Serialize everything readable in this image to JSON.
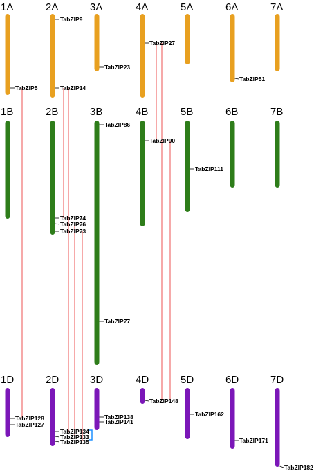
{
  "colors": {
    "A": "#E8A020",
    "B": "#2E7D1A",
    "D": "#7B17B8",
    "link": "#F07070",
    "bracket": "#1E90FF",
    "tick": "#000000"
  },
  "chromosomes": [
    {
      "id": "1A",
      "label": "1A",
      "genome": "A"
    },
    {
      "id": "2A",
      "label": "2A",
      "genome": "A"
    },
    {
      "id": "3A",
      "label": "3A",
      "genome": "A"
    },
    {
      "id": "4A",
      "label": "4A",
      "genome": "A"
    },
    {
      "id": "5A",
      "label": "5A",
      "genome": "A"
    },
    {
      "id": "6A",
      "label": "6A",
      "genome": "A"
    },
    {
      "id": "7A",
      "label": "7A",
      "genome": "A"
    },
    {
      "id": "1B",
      "label": "1B",
      "genome": "B"
    },
    {
      "id": "2B",
      "label": "2B",
      "genome": "B"
    },
    {
      "id": "3B",
      "label": "3B",
      "genome": "B"
    },
    {
      "id": "4B",
      "label": "4B",
      "genome": "B"
    },
    {
      "id": "5B",
      "label": "5B",
      "genome": "B"
    },
    {
      "id": "6B",
      "label": "6B",
      "genome": "B"
    },
    {
      "id": "7B",
      "label": "7B",
      "genome": "B"
    },
    {
      "id": "1D",
      "label": "1D",
      "genome": "D"
    },
    {
      "id": "2D",
      "label": "2D",
      "genome": "D"
    },
    {
      "id": "3D",
      "label": "3D",
      "genome": "D"
    },
    {
      "id": "4D",
      "label": "4D",
      "genome": "D"
    },
    {
      "id": "5D",
      "label": "5D",
      "genome": "D"
    },
    {
      "id": "6D",
      "label": "6D",
      "genome": "D"
    },
    {
      "id": "7D",
      "label": "7D",
      "genome": "D"
    }
  ],
  "genes": [
    {
      "name": "TabZIP9",
      "chr": "2A"
    },
    {
      "name": "TabZIP23",
      "chr": "3A"
    },
    {
      "name": "TabZIP27",
      "chr": "4A"
    },
    {
      "name": "TabZIP51",
      "chr": "6A"
    },
    {
      "name": "TabZIP5",
      "chr": "1A"
    },
    {
      "name": "TabZIP14",
      "chr": "2A"
    },
    {
      "name": "TabZIP86",
      "chr": "3B"
    },
    {
      "name": "TabZIP90",
      "chr": "4B"
    },
    {
      "name": "TabZIP111",
      "chr": "5B"
    },
    {
      "name": "TabZIP74",
      "chr": "2B"
    },
    {
      "name": "TabZIP76",
      "chr": "2B"
    },
    {
      "name": "TabZIP73",
      "chr": "2B"
    },
    {
      "name": "TabZIP77",
      "chr": "3B"
    },
    {
      "name": "TabZIP148",
      "chr": "4D"
    },
    {
      "name": "TabZIP162",
      "chr": "5D"
    },
    {
      "name": "TabZIP138",
      "chr": "3D"
    },
    {
      "name": "TabZIP141",
      "chr": "3D"
    },
    {
      "name": "TabZIP128",
      "chr": "1D"
    },
    {
      "name": "TabZIP127",
      "chr": "1D"
    },
    {
      "name": "TabZIP134",
      "chr": "2D"
    },
    {
      "name": "TabZIP133",
      "chr": "2D"
    },
    {
      "name": "TabZIP135",
      "chr": "2D"
    },
    {
      "name": "TabZIP171",
      "chr": "6D"
    },
    {
      "name": "TabZIP182",
      "chr": "7D"
    }
  ],
  "links": [
    [
      "TabZIP5",
      "TabZIP128"
    ],
    [
      "TabZIP14",
      "TabZIP74"
    ],
    [
      "TabZIP14",
      "TabZIP134"
    ],
    [
      "TabZIP76",
      "TabZIP133"
    ],
    [
      "TabZIP73",
      "TabZIP135"
    ],
    [
      "TabZIP27",
      "TabZIP90"
    ],
    [
      "TabZIP27",
      "TabZIP148"
    ],
    [
      "TabZIP90",
      "TabZIP148"
    ]
  ],
  "tandem_cluster": [
    "TabZIP134",
    "TabZIP133",
    "TabZIP135"
  ]
}
